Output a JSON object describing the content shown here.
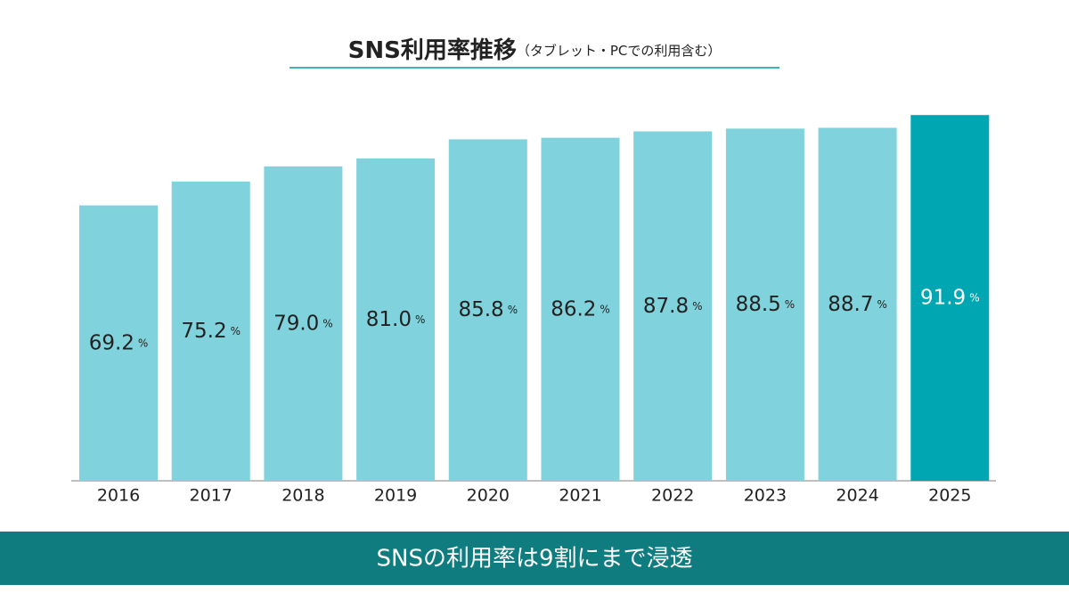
{
  "chart_data": {
    "type": "bar",
    "title": "SNS利用率推移",
    "subtitle": "（タブレット・PCでの利用含む）",
    "categories": [
      "2016",
      "2017",
      "2018",
      "2019",
      "2020",
      "2021",
      "2022",
      "2023",
      "2024",
      "2025"
    ],
    "values": [
      69.2,
      75.2,
      79.0,
      81.0,
      85.8,
      86.2,
      87.8,
      88.5,
      88.7,
      91.9
    ],
    "value_labels": [
      "69.2",
      "75.2",
      "79.0",
      "81.0",
      "85.8",
      "86.2",
      "87.8",
      "88.5",
      "88.7",
      "91.9"
    ],
    "unit": "%",
    "colors": [
      "#80d3dc",
      "#80d3dc",
      "#80d3dc",
      "#80d3dc",
      "#80d3dc",
      "#80d3dc",
      "#80d3dc",
      "#80d3dc",
      "#80d3dc",
      "#00a7b3"
    ],
    "value_label_colors": [
      "#222222",
      "#222222",
      "#222222",
      "#222222",
      "#222222",
      "#222222",
      "#222222",
      "#222222",
      "#222222",
      "#ffffff"
    ],
    "caption": "SNSの利用率は9割にまで浸透"
  }
}
